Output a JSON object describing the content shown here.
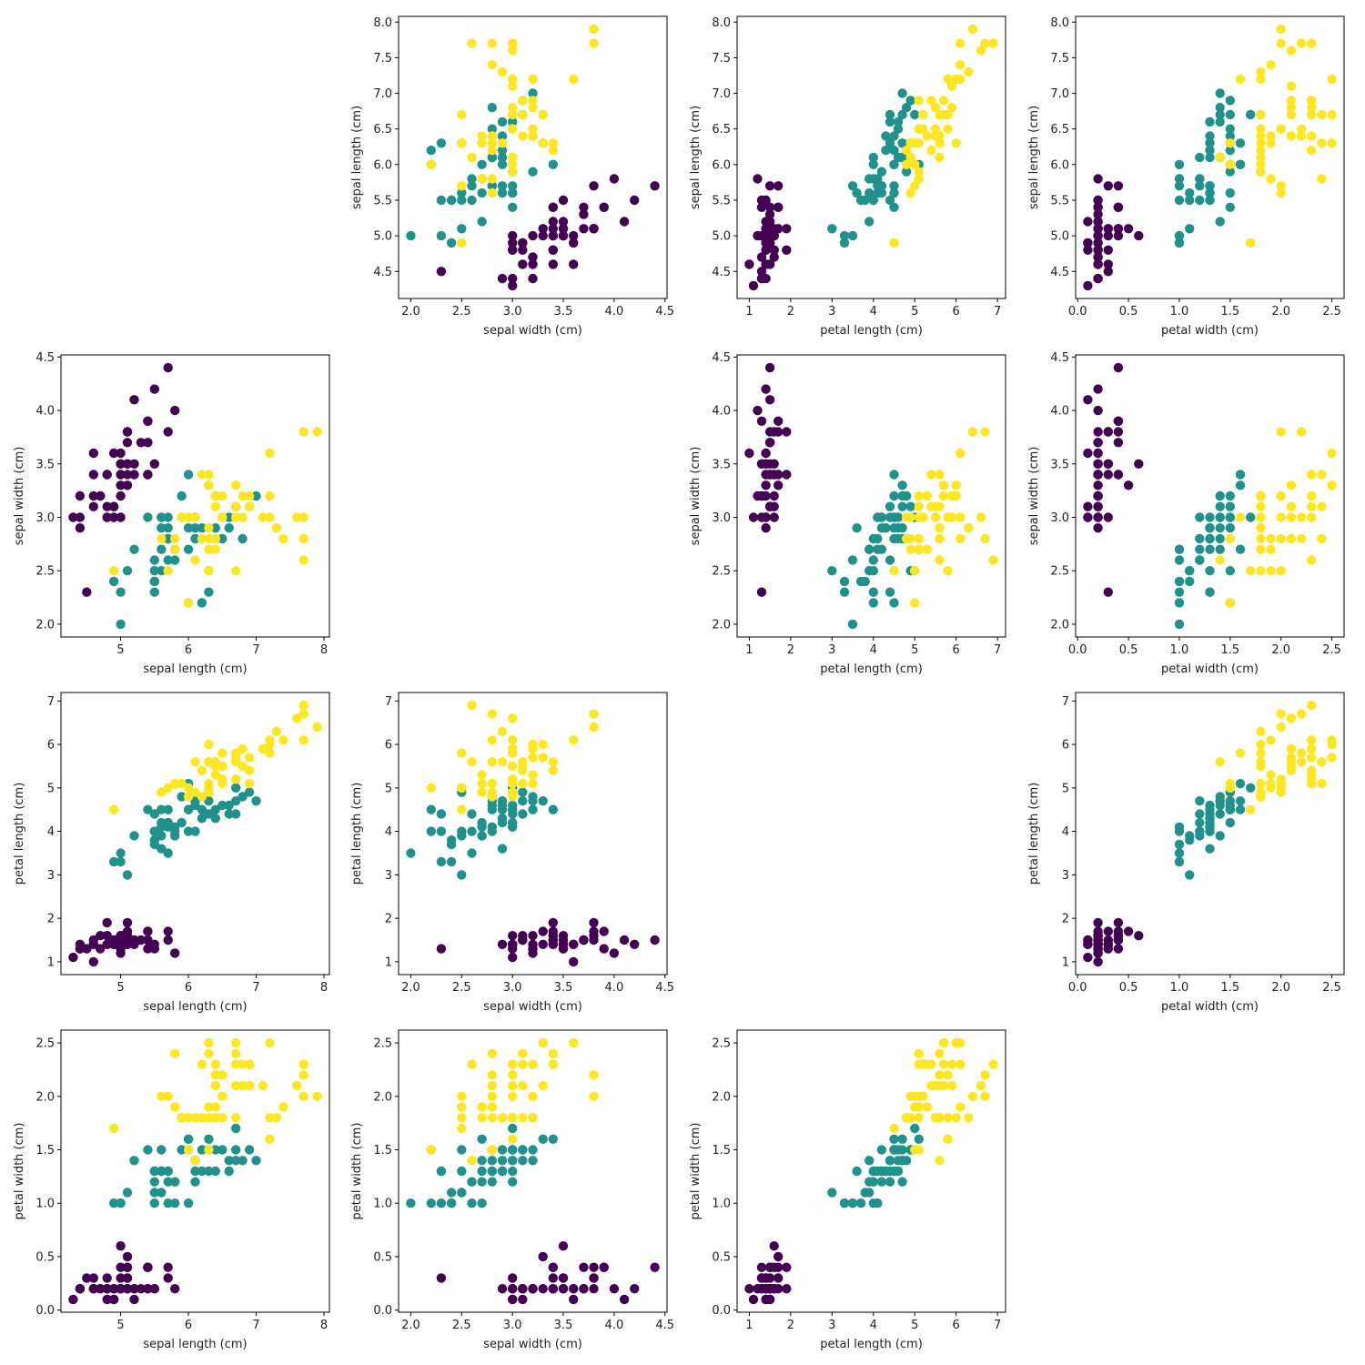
{
  "chart_data": {
    "type": "scatter",
    "title": "",
    "layout": "pairplot 4x4, diagonal empty",
    "features": [
      "sepal length (cm)",
      "sepal width (cm)",
      "petal length (cm)",
      "petal width (cm)"
    ],
    "class_colors": [
      "#440154",
      "#21918c",
      "#fde725"
    ],
    "axis_ranges": [
      [
        4.3,
        7.9
      ],
      [
        2.0,
        4.4
      ],
      [
        1.0,
        6.9
      ],
      [
        0.1,
        2.5
      ]
    ],
    "ticks": [
      [
        "5",
        "6",
        "7",
        "8"
      ],
      [
        "2.0",
        "2.5",
        "3.0",
        "3.5",
        "4.0",
        "4.5"
      ],
      [
        "1",
        "2",
        "3",
        "4",
        "5",
        "6",
        "7"
      ],
      [
        "0.0",
        "0.5",
        "1.0",
        "1.5",
        "2.0",
        "2.5"
      ]
    ],
    "tick_values": [
      [
        5,
        6,
        7,
        8
      ],
      [
        2.0,
        2.5,
        3.0,
        3.5,
        4.0,
        4.5
      ],
      [
        1,
        2,
        3,
        4,
        5,
        6,
        7
      ],
      [
        0.0,
        0.5,
        1.0,
        1.5,
        2.0,
        2.5
      ]
    ],
    "tick_values_sepal_length_y": [
      4.5,
      5.0,
      5.5,
      6.0,
      6.5,
      7.0,
      7.5,
      8.0
    ],
    "tick_labels_sepal_length_y": [
      "4.5",
      "5.0",
      "5.5",
      "6.0",
      "6.5",
      "7.0",
      "7.5",
      "8.0"
    ],
    "samples": [
      [
        5.1,
        3.5,
        1.4,
        0.2,
        0
      ],
      [
        4.9,
        3.0,
        1.4,
        0.2,
        0
      ],
      [
        4.7,
        3.2,
        1.3,
        0.2,
        0
      ],
      [
        4.6,
        3.1,
        1.5,
        0.2,
        0
      ],
      [
        5.0,
        3.6,
        1.4,
        0.2,
        0
      ],
      [
        5.4,
        3.9,
        1.7,
        0.4,
        0
      ],
      [
        4.6,
        3.4,
        1.4,
        0.3,
        0
      ],
      [
        5.0,
        3.4,
        1.5,
        0.2,
        0
      ],
      [
        4.4,
        2.9,
        1.4,
        0.2,
        0
      ],
      [
        4.9,
        3.1,
        1.5,
        0.1,
        0
      ],
      [
        5.4,
        3.7,
        1.5,
        0.2,
        0
      ],
      [
        4.8,
        3.4,
        1.6,
        0.2,
        0
      ],
      [
        4.8,
        3.0,
        1.4,
        0.1,
        0
      ],
      [
        4.3,
        3.0,
        1.1,
        0.1,
        0
      ],
      [
        5.8,
        4.0,
        1.2,
        0.2,
        0
      ],
      [
        5.7,
        4.4,
        1.5,
        0.4,
        0
      ],
      [
        5.4,
        3.9,
        1.3,
        0.4,
        0
      ],
      [
        5.1,
        3.5,
        1.4,
        0.3,
        0
      ],
      [
        5.7,
        3.8,
        1.7,
        0.3,
        0
      ],
      [
        5.1,
        3.8,
        1.5,
        0.3,
        0
      ],
      [
        5.4,
        3.4,
        1.7,
        0.2,
        0
      ],
      [
        5.1,
        3.7,
        1.5,
        0.4,
        0
      ],
      [
        4.6,
        3.6,
        1.0,
        0.2,
        0
      ],
      [
        5.1,
        3.3,
        1.7,
        0.5,
        0
      ],
      [
        4.8,
        3.4,
        1.9,
        0.2,
        0
      ],
      [
        5.0,
        3.0,
        1.6,
        0.2,
        0
      ],
      [
        5.0,
        3.4,
        1.6,
        0.4,
        0
      ],
      [
        5.2,
        3.5,
        1.5,
        0.2,
        0
      ],
      [
        5.2,
        3.4,
        1.4,
        0.2,
        0
      ],
      [
        4.7,
        3.2,
        1.6,
        0.2,
        0
      ],
      [
        4.8,
        3.1,
        1.6,
        0.2,
        0
      ],
      [
        5.4,
        3.4,
        1.5,
        0.4,
        0
      ],
      [
        5.2,
        4.1,
        1.5,
        0.1,
        0
      ],
      [
        5.5,
        4.2,
        1.4,
        0.2,
        0
      ],
      [
        4.9,
        3.1,
        1.5,
        0.2,
        0
      ],
      [
        5.0,
        3.2,
        1.2,
        0.2,
        0
      ],
      [
        5.5,
        3.5,
        1.3,
        0.2,
        0
      ],
      [
        4.9,
        3.6,
        1.4,
        0.1,
        0
      ],
      [
        4.4,
        3.0,
        1.3,
        0.2,
        0
      ],
      [
        5.1,
        3.4,
        1.5,
        0.2,
        0
      ],
      [
        5.0,
        3.5,
        1.3,
        0.3,
        0
      ],
      [
        4.5,
        2.3,
        1.3,
        0.3,
        0
      ],
      [
        4.4,
        3.2,
        1.3,
        0.2,
        0
      ],
      [
        5.0,
        3.5,
        1.6,
        0.6,
        0
      ],
      [
        5.1,
        3.8,
        1.9,
        0.4,
        0
      ],
      [
        4.8,
        3.0,
        1.4,
        0.3,
        0
      ],
      [
        5.1,
        3.8,
        1.6,
        0.2,
        0
      ],
      [
        4.6,
        3.2,
        1.4,
        0.2,
        0
      ],
      [
        5.3,
        3.7,
        1.5,
        0.2,
        0
      ],
      [
        5.0,
        3.3,
        1.4,
        0.2,
        0
      ],
      [
        7.0,
        3.2,
        4.7,
        1.4,
        1
      ],
      [
        6.4,
        3.2,
        4.5,
        1.5,
        1
      ],
      [
        6.9,
        3.1,
        4.9,
        1.5,
        1
      ],
      [
        5.5,
        2.3,
        4.0,
        1.3,
        1
      ],
      [
        6.5,
        2.8,
        4.6,
        1.5,
        1
      ],
      [
        5.7,
        2.8,
        4.5,
        1.3,
        1
      ],
      [
        6.3,
        3.3,
        4.7,
        1.6,
        1
      ],
      [
        4.9,
        2.4,
        3.3,
        1.0,
        1
      ],
      [
        6.6,
        2.9,
        4.6,
        1.3,
        1
      ],
      [
        5.2,
        2.7,
        3.9,
        1.4,
        1
      ],
      [
        5.0,
        2.0,
        3.5,
        1.0,
        1
      ],
      [
        5.9,
        3.0,
        4.2,
        1.5,
        1
      ],
      [
        6.0,
        2.2,
        4.0,
        1.0,
        1
      ],
      [
        6.1,
        2.9,
        4.7,
        1.4,
        1
      ],
      [
        5.6,
        2.9,
        3.6,
        1.3,
        1
      ],
      [
        6.7,
        3.1,
        4.4,
        1.4,
        1
      ],
      [
        5.6,
        3.0,
        4.5,
        1.5,
        1
      ],
      [
        5.8,
        2.7,
        4.1,
        1.0,
        1
      ],
      [
        6.2,
        2.2,
        4.5,
        1.5,
        1
      ],
      [
        5.6,
        2.5,
        3.9,
        1.1,
        1
      ],
      [
        5.9,
        3.2,
        4.8,
        1.8,
        1
      ],
      [
        6.1,
        2.8,
        4.0,
        1.3,
        1
      ],
      [
        6.3,
        2.5,
        4.9,
        1.5,
        1
      ],
      [
        6.1,
        2.8,
        4.7,
        1.2,
        1
      ],
      [
        6.4,
        2.9,
        4.3,
        1.3,
        1
      ],
      [
        6.6,
        3.0,
        4.4,
        1.4,
        1
      ],
      [
        6.8,
        2.8,
        4.8,
        1.4,
        1
      ],
      [
        6.7,
        3.0,
        5.0,
        1.7,
        1
      ],
      [
        6.0,
        2.9,
        4.5,
        1.5,
        1
      ],
      [
        5.7,
        2.6,
        3.5,
        1.0,
        1
      ],
      [
        5.5,
        2.4,
        3.8,
        1.1,
        1
      ],
      [
        5.5,
        2.4,
        3.7,
        1.0,
        1
      ],
      [
        5.8,
        2.7,
        3.9,
        1.2,
        1
      ],
      [
        6.0,
        2.7,
        5.1,
        1.6,
        1
      ],
      [
        5.4,
        3.0,
        4.5,
        1.5,
        1
      ],
      [
        6.0,
        3.4,
        4.5,
        1.6,
        1
      ],
      [
        6.7,
        3.1,
        4.7,
        1.5,
        1
      ],
      [
        6.3,
        2.3,
        4.4,
        1.3,
        1
      ],
      [
        5.6,
        3.0,
        4.1,
        1.3,
        1
      ],
      [
        5.5,
        2.5,
        4.0,
        1.3,
        1
      ],
      [
        5.5,
        2.6,
        4.4,
        1.2,
        1
      ],
      [
        6.1,
        3.0,
        4.6,
        1.4,
        1
      ],
      [
        5.8,
        2.6,
        4.0,
        1.2,
        1
      ],
      [
        5.0,
        2.3,
        3.3,
        1.0,
        1
      ],
      [
        5.6,
        2.7,
        4.2,
        1.3,
        1
      ],
      [
        5.7,
        3.0,
        4.2,
        1.2,
        1
      ],
      [
        5.7,
        2.9,
        4.2,
        1.3,
        1
      ],
      [
        6.2,
        2.9,
        4.3,
        1.3,
        1
      ],
      [
        5.1,
        2.5,
        3.0,
        1.1,
        1
      ],
      [
        5.7,
        2.8,
        4.1,
        1.3,
        1
      ],
      [
        6.3,
        3.3,
        6.0,
        2.5,
        2
      ],
      [
        5.8,
        2.7,
        5.1,
        1.9,
        2
      ],
      [
        7.1,
        3.0,
        5.9,
        2.1,
        2
      ],
      [
        6.3,
        2.9,
        5.6,
        1.8,
        2
      ],
      [
        6.5,
        3.0,
        5.8,
        2.2,
        2
      ],
      [
        7.6,
        3.0,
        6.6,
        2.1,
        2
      ],
      [
        4.9,
        2.5,
        4.5,
        1.7,
        2
      ],
      [
        7.3,
        2.9,
        6.3,
        1.8,
        2
      ],
      [
        6.7,
        2.5,
        5.8,
        1.8,
        2
      ],
      [
        7.2,
        3.6,
        6.1,
        2.5,
        2
      ],
      [
        6.5,
        3.2,
        5.1,
        2.0,
        2
      ],
      [
        6.4,
        2.7,
        5.3,
        1.9,
        2
      ],
      [
        6.8,
        3.0,
        5.5,
        2.1,
        2
      ],
      [
        5.7,
        2.5,
        5.0,
        2.0,
        2
      ],
      [
        5.8,
        2.8,
        5.1,
        2.4,
        2
      ],
      [
        6.4,
        3.2,
        5.3,
        2.3,
        2
      ],
      [
        6.5,
        3.0,
        5.5,
        1.8,
        2
      ],
      [
        7.7,
        3.8,
        6.7,
        2.2,
        2
      ],
      [
        7.7,
        2.6,
        6.9,
        2.3,
        2
      ],
      [
        6.0,
        2.2,
        5.0,
        1.5,
        2
      ],
      [
        6.9,
        3.2,
        5.7,
        2.3,
        2
      ],
      [
        5.6,
        2.8,
        4.9,
        2.0,
        2
      ],
      [
        7.7,
        2.8,
        6.7,
        2.0,
        2
      ],
      [
        6.3,
        2.7,
        4.9,
        1.8,
        2
      ],
      [
        6.7,
        3.3,
        5.7,
        2.1,
        2
      ],
      [
        7.2,
        3.2,
        6.0,
        1.8,
        2
      ],
      [
        6.2,
        2.8,
        4.8,
        1.8,
        2
      ],
      [
        6.1,
        3.0,
        4.9,
        1.8,
        2
      ],
      [
        6.4,
        2.8,
        5.6,
        2.1,
        2
      ],
      [
        7.2,
        3.0,
        5.8,
        1.6,
        2
      ],
      [
        7.4,
        2.8,
        6.1,
        1.9,
        2
      ],
      [
        7.9,
        3.8,
        6.4,
        2.0,
        2
      ],
      [
        6.4,
        2.8,
        5.6,
        2.2,
        2
      ],
      [
        6.3,
        2.8,
        5.1,
        1.5,
        2
      ],
      [
        6.1,
        2.6,
        5.6,
        1.4,
        2
      ],
      [
        7.7,
        3.0,
        6.1,
        2.3,
        2
      ],
      [
        6.3,
        3.4,
        5.6,
        2.4,
        2
      ],
      [
        6.4,
        3.1,
        5.5,
        1.8,
        2
      ],
      [
        6.0,
        3.0,
        4.8,
        1.8,
        2
      ],
      [
        6.9,
        3.1,
        5.4,
        2.1,
        2
      ],
      [
        6.7,
        3.1,
        5.6,
        2.4,
        2
      ],
      [
        6.9,
        3.1,
        5.1,
        2.3,
        2
      ],
      [
        5.8,
        2.7,
        5.1,
        1.9,
        2
      ],
      [
        6.8,
        3.2,
        5.9,
        2.3,
        2
      ],
      [
        6.7,
        3.3,
        5.7,
        2.5,
        2
      ],
      [
        6.7,
        3.0,
        5.2,
        2.3,
        2
      ],
      [
        6.3,
        2.5,
        5.0,
        1.9,
        2
      ],
      [
        6.5,
        3.0,
        5.2,
        2.0,
        2
      ],
      [
        6.2,
        3.4,
        5.4,
        2.3,
        2
      ],
      [
        5.9,
        3.0,
        5.1,
        1.8,
        2
      ]
    ]
  }
}
